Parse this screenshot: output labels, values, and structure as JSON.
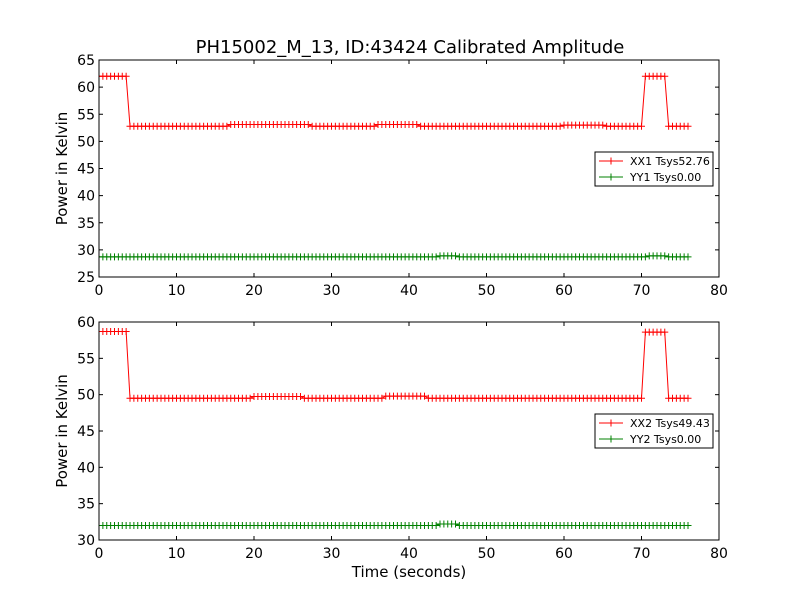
{
  "title": "PH15002_M_13, ID:43424 Calibrated Amplitude",
  "chart_data": [
    {
      "type": "line",
      "xlabel": "",
      "ylabel": "Power in Kelvin",
      "xlim": [
        0,
        80
      ],
      "ylim": [
        25,
        65
      ],
      "xticks": [
        "0",
        "10",
        "20",
        "30",
        "40",
        "50",
        "60",
        "70",
        "80"
      ],
      "yticks": [
        "25",
        "30",
        "35",
        "40",
        "45",
        "50",
        "55",
        "60",
        "65"
      ],
      "grid": false,
      "legend_position": "right",
      "x_start": 0,
      "x_step": 0.5,
      "x_count": 153,
      "series": [
        {
          "name": "XX1 Tsys52.76",
          "color": "#ff0000",
          "marker": "+",
          "segments": [
            {
              "x_from": 0,
              "x_to": 3.5,
              "value": 62.0
            },
            {
              "x_from": 4.0,
              "x_to": 70.0,
              "value": 52.8
            },
            {
              "x_from": 70.5,
              "x_to": 73.0,
              "value": 62.0
            },
            {
              "x_from": 73.5,
              "x_to": 76.0,
              "value": 52.8
            }
          ],
          "bumps": [
            {
              "x_from": 17,
              "x_to": 27,
              "delta": 0.3
            },
            {
              "x_from": 36,
              "x_to": 41,
              "delta": 0.3
            },
            {
              "x_from": 60,
              "x_to": 65,
              "delta": 0.2
            }
          ]
        },
        {
          "name": "YY1 Tsys0.00",
          "color": "#008000",
          "marker": "+",
          "segments": [
            {
              "x_from": 0,
              "x_to": 76.0,
              "value": 28.7
            }
          ],
          "bumps": [
            {
              "x_from": 44,
              "x_to": 46,
              "delta": 0.2
            },
            {
              "x_from": 71,
              "x_to": 73,
              "delta": 0.2
            }
          ]
        }
      ]
    },
    {
      "type": "line",
      "xlabel": "Time (seconds)",
      "ylabel": "Power in Kelvin",
      "xlim": [
        0,
        80
      ],
      "ylim": [
        30,
        60
      ],
      "xticks": [
        "0",
        "10",
        "20",
        "30",
        "40",
        "50",
        "60",
        "70",
        "80"
      ],
      "yticks": [
        "30",
        "35",
        "40",
        "45",
        "50",
        "55",
        "60"
      ],
      "grid": false,
      "legend_position": "right",
      "x_start": 0,
      "x_step": 0.5,
      "x_count": 153,
      "series": [
        {
          "name": "XX2 Tsys49.43",
          "color": "#ff0000",
          "marker": "+",
          "segments": [
            {
              "x_from": 0,
              "x_to": 3.5,
              "value": 58.7
            },
            {
              "x_from": 4.0,
              "x_to": 70.0,
              "value": 49.5
            },
            {
              "x_from": 70.5,
              "x_to": 73.0,
              "value": 58.6
            },
            {
              "x_from": 73.5,
              "x_to": 76.0,
              "value": 49.5
            }
          ],
          "bumps": [
            {
              "x_from": 20,
              "x_to": 26,
              "delta": 0.25
            },
            {
              "x_from": 37,
              "x_to": 42,
              "delta": 0.3
            }
          ]
        },
        {
          "name": "YY2 Tsys0.00",
          "color": "#008000",
          "marker": "+",
          "segments": [
            {
              "x_from": 0,
              "x_to": 76.0,
              "value": 32.0
            }
          ],
          "bumps": [
            {
              "x_from": 44,
              "x_to": 46,
              "delta": 0.2
            }
          ]
        }
      ]
    }
  ]
}
